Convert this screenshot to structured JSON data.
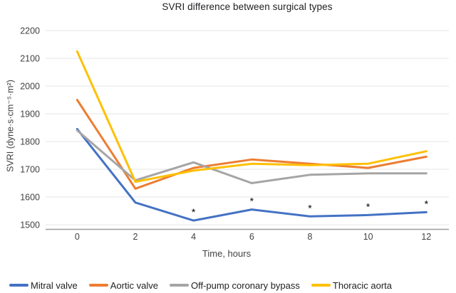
{
  "chart_data": {
    "type": "line",
    "title": "SVRI difference between surgical types",
    "xlabel": "Time, hours",
    "ylabel": "SVRI (dyne·s·cm⁻⁵·m²)",
    "x": [
      0,
      2,
      4,
      6,
      8,
      10,
      12
    ],
    "ylim": [
      1500,
      2200
    ],
    "ytick_step": 100,
    "grid": true,
    "legend_position": "bottom",
    "series": [
      {
        "name": "Mitral valve",
        "color": "#4472c4",
        "values": [
          1845,
          1580,
          1515,
          1555,
          1530,
          1535,
          1545
        ]
      },
      {
        "name": "Aortic valve",
        "color": "#ed7d31",
        "values": [
          1950,
          1630,
          1705,
          1735,
          1720,
          1705,
          1745
        ]
      },
      {
        "name": "Off-pump coronary bypass",
        "color": "#a5a5a5",
        "values": [
          1840,
          1660,
          1725,
          1650,
          1680,
          1685,
          1685
        ]
      },
      {
        "name": "Thoracic aorta",
        "color": "#ffc000",
        "values": [
          2125,
          1655,
          1695,
          1720,
          1715,
          1720,
          1765
        ]
      }
    ],
    "annotations": [
      {
        "series": "Mitral valve",
        "x": 4,
        "label": "*"
      },
      {
        "series": "Mitral valve",
        "x": 6,
        "label": "*"
      },
      {
        "series": "Mitral valve",
        "x": 8,
        "label": "*"
      },
      {
        "series": "Mitral valve",
        "x": 10,
        "label": "*"
      },
      {
        "series": "Mitral valve",
        "x": 12,
        "label": "*"
      }
    ],
    "colors": {
      "gridline": "#e4e4e4",
      "axis_line": "#9e9e9e",
      "tick_text": "#424242",
      "annotation": "#000000"
    }
  }
}
